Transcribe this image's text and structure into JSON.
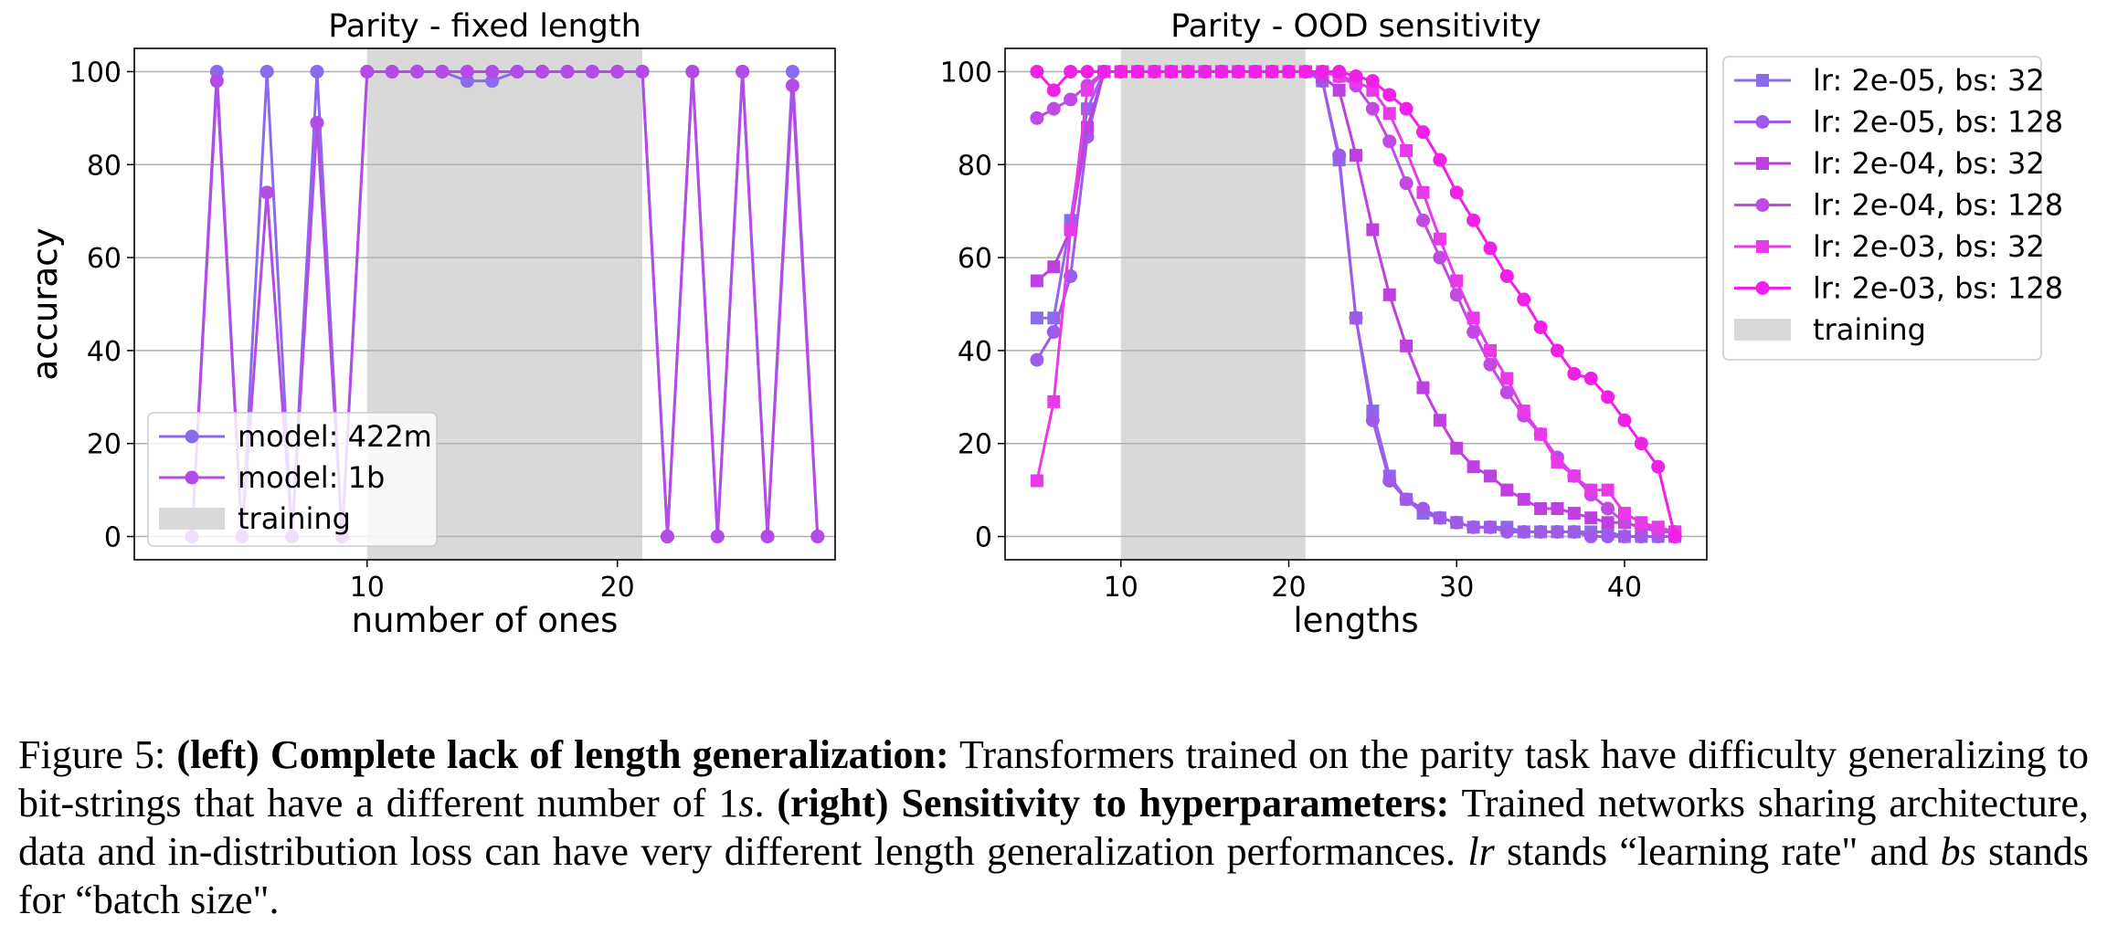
{
  "colors": {
    "series_422m": "#8B6BEB",
    "series_1b": "#B34BE6",
    "lr_2e05_bs32": "#8B6BEB",
    "lr_2e05_bs128": "#9E5AE9",
    "lr_2e04_bs32": "#BE40E2",
    "lr_2e04_bs128": "#C24AE4",
    "lr_2e03_bs32": "#E83AE8",
    "lr_2e03_bs128": "#F020E6",
    "training_band": "#d9d9d9",
    "grid": "#b0b0b0"
  },
  "chart_data": [
    {
      "type": "line",
      "title": "Parity - fixed length",
      "xlabel": "number of ones",
      "ylabel": "accuracy",
      "xlim": [
        0.7,
        28.7
      ],
      "ylim": [
        -5,
        105
      ],
      "xticks": [
        10,
        20
      ],
      "yticks": [
        0,
        20,
        40,
        60,
        80,
        100
      ],
      "grid": "horizontal",
      "legend_position": "lower-left",
      "training_range": [
        10,
        21
      ],
      "training_label": "training",
      "series": [
        {
          "name": "model: 422m",
          "marker": "circle",
          "x": [
            3,
            4,
            5,
            6,
            7,
            8,
            9,
            10,
            11,
            12,
            13,
            14,
            15,
            16,
            17,
            18,
            19,
            20,
            21,
            22,
            23,
            24,
            25,
            26,
            27,
            28
          ],
          "values": [
            0,
            100,
            0,
            100,
            0,
            100,
            0,
            100,
            100,
            100,
            100,
            98,
            98,
            100,
            100,
            100,
            100,
            100,
            100,
            0,
            100,
            0,
            100,
            0,
            100,
            0
          ]
        },
        {
          "name": "model: 1b",
          "marker": "circle",
          "x": [
            3,
            4,
            5,
            6,
            7,
            8,
            9,
            10,
            11,
            12,
            13,
            14,
            15,
            16,
            17,
            18,
            19,
            20,
            21,
            22,
            23,
            24,
            25,
            26,
            27,
            28
          ],
          "values": [
            0,
            98,
            0,
            74,
            0,
            89,
            0,
            100,
            100,
            100,
            100,
            100,
            100,
            100,
            100,
            100,
            100,
            100,
            100,
            0,
            100,
            0,
            100,
            0,
            97,
            0
          ]
        }
      ]
    },
    {
      "type": "line",
      "title": "Parity - OOD sensitivity",
      "xlabel": "lengths",
      "ylabel": "accuracy",
      "xlim": [
        3.1,
        44.9
      ],
      "ylim": [
        -5,
        105
      ],
      "xticks": [
        10,
        20,
        30,
        40
      ],
      "yticks": [
        0,
        20,
        40,
        60,
        80,
        100
      ],
      "grid": "horizontal",
      "legend_position": "outside-right",
      "training_range": [
        10,
        21
      ],
      "training_label": "training",
      "x": [
        5,
        6,
        7,
        8,
        9,
        10,
        11,
        12,
        13,
        14,
        15,
        16,
        17,
        18,
        19,
        20,
        21,
        22,
        23,
        24,
        25,
        26,
        27,
        28,
        29,
        30,
        31,
        32,
        33,
        34,
        35,
        36,
        37,
        38,
        39,
        40,
        41,
        42,
        43
      ],
      "series": [
        {
          "name": "lr:  2e-05, bs: 32",
          "marker": "square",
          "values": [
            47,
            47,
            68,
            92,
            100,
            100,
            100,
            100,
            100,
            100,
            100,
            100,
            100,
            100,
            100,
            100,
            100,
            98,
            81,
            47,
            27,
            13,
            8,
            5,
            4,
            3,
            2,
            2,
            2,
            1,
            1,
            1,
            1,
            1,
            1,
            0,
            0,
            0,
            0
          ]
        },
        {
          "name": "lr:  2e-05, bs: 128",
          "marker": "circle",
          "values": [
            38,
            44,
            56,
            86,
            100,
            100,
            100,
            100,
            100,
            100,
            100,
            100,
            100,
            100,
            100,
            100,
            100,
            98,
            82,
            47,
            25,
            12,
            8,
            6,
            4,
            3,
            2,
            2,
            1,
            1,
            1,
            1,
            1,
            0,
            0,
            0,
            0,
            0,
            0
          ]
        },
        {
          "name": "lr:  2e-04, bs: 32",
          "marker": "square",
          "values": [
            55,
            58,
            66,
            88,
            100,
            100,
            100,
            100,
            100,
            100,
            100,
            100,
            100,
            100,
            100,
            100,
            100,
            99,
            96,
            82,
            66,
            52,
            41,
            32,
            25,
            19,
            15,
            13,
            10,
            8,
            6,
            6,
            5,
            4,
            3,
            3,
            2,
            2,
            1
          ]
        },
        {
          "name": "lr:  2e-04, bs: 128",
          "marker": "circle",
          "values": [
            90,
            92,
            94,
            97,
            100,
            100,
            100,
            100,
            100,
            100,
            100,
            100,
            100,
            100,
            100,
            100,
            100,
            100,
            99,
            97,
            92,
            85,
            76,
            68,
            60,
            52,
            44,
            37,
            31,
            26,
            22,
            17,
            13,
            9,
            6,
            3,
            2,
            1,
            1
          ]
        },
        {
          "name": "lr:  2e-03, bs: 32",
          "marker": "square",
          "values": [
            12,
            29,
            66,
            96,
            100,
            100,
            100,
            100,
            100,
            100,
            100,
            100,
            100,
            100,
            100,
            100,
            100,
            100,
            99,
            98,
            96,
            91,
            83,
            74,
            64,
            55,
            47,
            40,
            34,
            27,
            22,
            16,
            13,
            10,
            10,
            5,
            3,
            2,
            1
          ]
        },
        {
          "name": "lr:  2e-03, bs: 128",
          "marker": "circle",
          "values": [
            100,
            96,
            100,
            100,
            100,
            100,
            100,
            100,
            100,
            100,
            100,
            100,
            100,
            100,
            100,
            100,
            100,
            100,
            100,
            99,
            98,
            95,
            92,
            87,
            81,
            74,
            68,
            62,
            56,
            51,
            45,
            40,
            35,
            34,
            30,
            25,
            20,
            15,
            0
          ]
        }
      ]
    }
  ],
  "caption": {
    "figure_label": "Figure 5:",
    "left_tag": "(left)",
    "left_heading": "Complete lack of length generalization:",
    "left_text_before": "Transformers trained on the parity task have difficulty generalizing to bit-strings that have a different number of 1",
    "left_text_var": "s",
    "left_text_after": ".",
    "right_tag": "(right)",
    "right_heading": "Sensitivity to hyperparameters:",
    "right_text": "Trained networks sharing architecture, data and in-distribution loss can have very different length generalization performances.",
    "lr_abbr": "lr",
    "lr_text": "stands “learning rate\" and",
    "bs_abbr": "bs",
    "bs_text": "stands for “batch size\"."
  }
}
